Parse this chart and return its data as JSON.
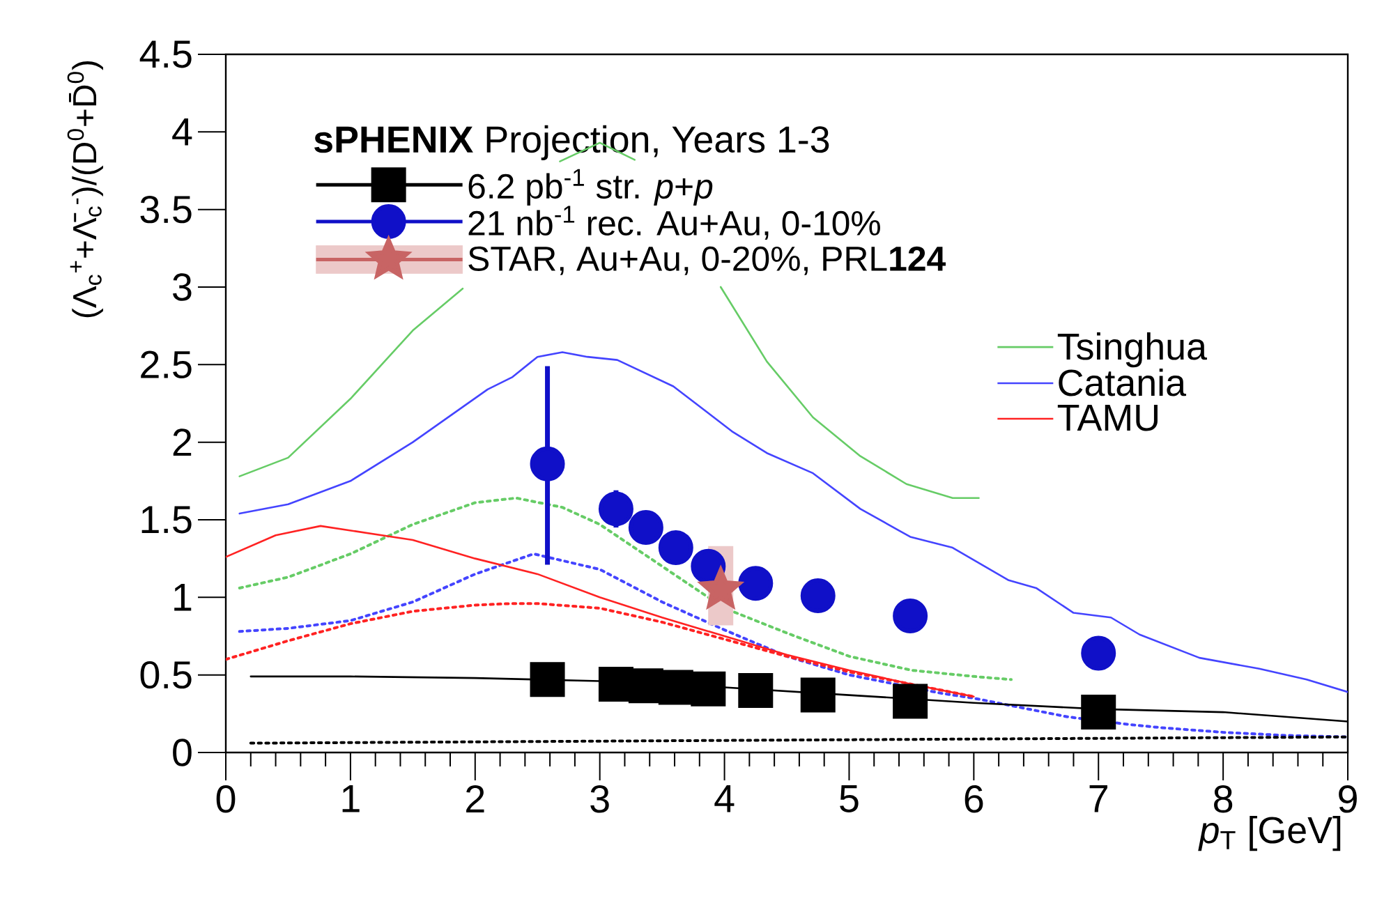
{
  "chart_data": {
    "type": "line",
    "xlabel": "*p*$_{T}$ [GeV]",
    "ylabel": "(Λ$_{c}$$^{+}$+Λ̄$_{c}$$^{-}$)/(D$^{0}$+D̄$^{0}$)",
    "legend_title": "**sPHENIX** Projection, Years 1-3",
    "legend": "top left",
    "xlim": [
      0,
      9
    ],
    "ylim": [
      0,
      4.5
    ],
    "xticks": [
      0,
      1,
      2,
      3,
      4,
      5,
      6,
      7,
      8,
      9
    ],
    "yticks": [
      0,
      0.5,
      1,
      1.5,
      2,
      2.5,
      3,
      3.5,
      4,
      4.5
    ],
    "series": [
      {
        "name": "Tsinghua",
        "line_style": "solid",
        "color": "#66cc66",
        "x": [
          0.11,
          0.5,
          1.0,
          1.5,
          1.9,
          2.3,
          2.68,
          3.0,
          3.28,
          3.6,
          3.97,
          4.34,
          4.71,
          5.09,
          5.46,
          5.83,
          6.04
        ],
        "values": [
          1.78,
          1.9,
          2.28,
          2.72,
          2.99,
          null,
          3.81,
          3.93,
          3.82,
          null,
          3.0,
          2.52,
          2.16,
          1.91,
          1.73,
          1.64,
          1.64
        ]
      },
      {
        "line_style": "dotted",
        "color": "#66cc66",
        "x": [
          0.11,
          0.5,
          1.0,
          1.5,
          2.0,
          2.33,
          2.7,
          3.0,
          3.5,
          4.0,
          4.5,
          5.0,
          5.5,
          6.0,
          6.3
        ],
        "values": [
          1.06,
          1.13,
          1.28,
          1.47,
          1.61,
          1.64,
          1.58,
          1.47,
          1.2,
          0.93,
          0.77,
          0.62,
          0.53,
          0.49,
          0.47
        ]
      },
      {
        "name": "Catania",
        "line_style": "solid",
        "color": "#4444ff",
        "x": [
          0.11,
          0.5,
          1.0,
          1.5,
          2.1,
          2.3,
          2.5,
          2.7,
          2.9,
          3.14,
          3.59,
          4.06,
          4.34,
          4.71,
          5.09,
          5.49,
          5.83,
          6.28,
          6.5,
          6.8,
          7.1,
          7.33,
          7.81,
          8.29,
          8.67,
          9.0
        ],
        "values": [
          1.54,
          1.6,
          1.75,
          2.0,
          2.34,
          2.42,
          2.55,
          2.58,
          2.55,
          2.53,
          2.36,
          2.07,
          1.93,
          1.8,
          1.57,
          1.39,
          1.32,
          1.11,
          1.06,
          0.9,
          0.87,
          0.76,
          0.61,
          0.54,
          0.47,
          0.39
        ]
      },
      {
        "line_style": "dotted",
        "color": "#4444ff",
        "x": [
          0.11,
          0.5,
          1.0,
          1.5,
          2.0,
          2.47,
          3.0,
          3.5,
          4.0,
          4.5,
          5.0,
          5.25,
          5.75,
          6.0,
          6.5,
          6.75,
          7.25,
          7.5,
          8.0,
          8.5,
          9.0
        ],
        "values": [
          0.78,
          0.8,
          0.85,
          0.97,
          1.15,
          1.28,
          1.18,
          0.97,
          0.79,
          0.62,
          0.5,
          0.46,
          0.38,
          0.35,
          0.27,
          0.23,
          0.18,
          0.16,
          0.13,
          0.11,
          0.1
        ]
      },
      {
        "name": "TAMU",
        "line_style": "solid",
        "color": "#ff2222",
        "x": [
          0.0,
          0.4,
          0.76,
          1.5,
          2.0,
          2.5,
          3.0,
          3.5,
          4.0,
          4.5,
          5.0,
          5.5,
          6.0
        ],
        "values": [
          1.26,
          1.4,
          1.46,
          1.37,
          1.25,
          1.15,
          1.0,
          0.87,
          0.75,
          0.63,
          0.53,
          0.44,
          0.36
        ]
      },
      {
        "line_style": "dotted",
        "color": "#ff2222",
        "x": [
          0.0,
          0.5,
          1.0,
          1.5,
          2.0,
          2.29,
          2.5,
          3.0,
          3.5,
          4.0,
          4.5,
          5.0,
          5.5,
          6.0
        ],
        "values": [
          0.6,
          0.72,
          0.83,
          0.91,
          0.95,
          0.96,
          0.96,
          0.93,
          0.84,
          0.73,
          0.62,
          0.52,
          0.44,
          0.36
        ]
      },
      {
        "line_style": "solid",
        "color": "#000000",
        "x": [
          0.2,
          1.0,
          2.0,
          3.0,
          4.0,
          5.0,
          6.0,
          7.0,
          8.0,
          9.0
        ],
        "values": [
          0.49,
          0.49,
          0.48,
          0.46,
          0.42,
          0.37,
          0.32,
          0.28,
          0.26,
          0.2
        ]
      },
      {
        "line_style": "dotted",
        "color": "#000000",
        "x": [
          0.2,
          4.5,
          9.0
        ],
        "values": [
          0.06,
          0.08,
          0.1
        ]
      },
      {
        "name": "6.2 pb$^{-1}$ str. *p*+*p*",
        "type": "scatter",
        "marker": "square",
        "color": "#000000",
        "x": [
          2.58,
          3.13,
          3.37,
          3.61,
          3.87,
          4.25,
          4.75,
          5.49,
          7.0
        ],
        "values": [
          0.47,
          0.44,
          0.43,
          0.42,
          0.41,
          0.4,
          0.37,
          0.33,
          0.26
        ],
        "errors": [
          0.05,
          null,
          null,
          null,
          null,
          null,
          null,
          null,
          null
        ]
      },
      {
        "name": "21 nb$^{-1}$ rec. Au+Au, 0-10%",
        "type": "scatter",
        "marker": "circle",
        "color": "#1010c8",
        "x": [
          2.58,
          3.13,
          3.37,
          3.61,
          3.87,
          4.25,
          4.75,
          5.49,
          7.0
        ],
        "values": [
          1.86,
          1.57,
          1.45,
          1.32,
          1.2,
          1.09,
          1.01,
          0.88,
          0.64
        ],
        "errors": [
          [
            1.21,
            2.49
          ],
          0.12,
          null,
          null,
          null,
          null,
          null,
          null,
          null
        ]
      },
      {
        "name": "STAR, Au+Au, 0-20%, PRL**124**",
        "type": "scatter",
        "marker": "star",
        "color": "#c86464",
        "x": [
          3.97
        ],
        "values": [
          1.05
        ],
        "errors": [
          [
            0.82,
            1.33
          ]
        ]
      }
    ]
  }
}
